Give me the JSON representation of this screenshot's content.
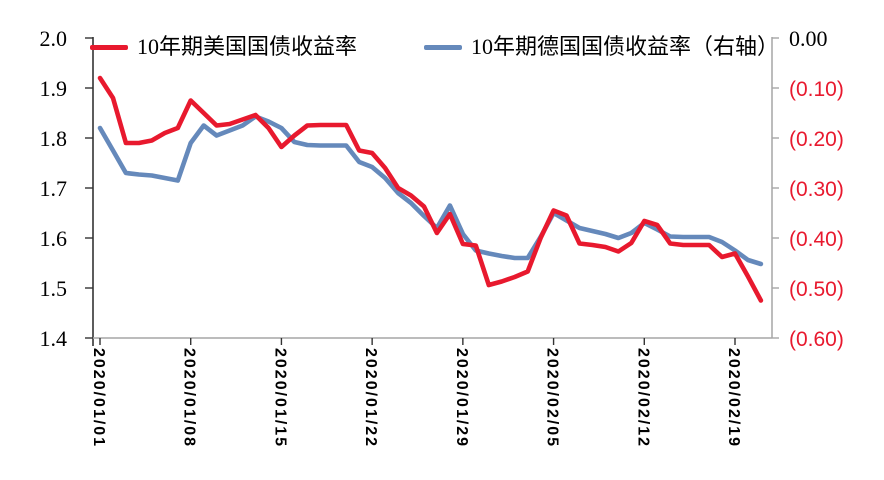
{
  "chart_data": {
    "type": "line",
    "title": "",
    "grid": false,
    "legend_position": "top",
    "x": [
      "2020/01/01",
      "2020/01/02",
      "2020/01/03",
      "2020/01/04",
      "2020/01/05",
      "2020/01/06",
      "2020/01/07",
      "2020/01/08",
      "2020/01/09",
      "2020/01/10",
      "2020/01/11",
      "2020/01/12",
      "2020/01/13",
      "2020/01/14",
      "2020/01/15",
      "2020/01/16",
      "2020/01/17",
      "2020/01/18",
      "2020/01/19",
      "2020/01/20",
      "2020/01/21",
      "2020/01/22",
      "2020/01/23",
      "2020/01/24",
      "2020/01/25",
      "2020/01/26",
      "2020/01/27",
      "2020/01/28",
      "2020/01/29",
      "2020/01/30",
      "2020/01/31",
      "2020/02/01",
      "2020/02/02",
      "2020/02/03",
      "2020/02/04",
      "2020/02/05",
      "2020/02/06",
      "2020/02/07",
      "2020/02/08",
      "2020/02/09",
      "2020/02/10",
      "2020/02/11",
      "2020/02/12",
      "2020/02/13",
      "2020/02/14",
      "2020/02/15",
      "2020/02/16",
      "2020/02/17",
      "2020/02/18",
      "2020/02/19",
      "2020/02/20",
      "2020/02/21"
    ],
    "x_tick_labels": [
      "2020/01/01",
      "2020/01/08",
      "2020/01/15",
      "2020/01/22",
      "2020/01/29",
      "2020/02/05",
      "2020/02/12",
      "2020/02/19"
    ],
    "series": [
      {
        "name": "10年期美国国债收益率",
        "axis": "left",
        "color": "#e8192e",
        "values": [
          1.92,
          1.88,
          1.79,
          1.79,
          1.795,
          1.81,
          1.82,
          1.875,
          1.85,
          1.825,
          1.828,
          1.837,
          1.846,
          1.82,
          1.782,
          1.805,
          1.825,
          1.826,
          1.826,
          1.826,
          1.775,
          1.77,
          1.74,
          1.7,
          1.685,
          1.663,
          1.61,
          1.648,
          1.588,
          1.585,
          1.506,
          1.513,
          1.522,
          1.533,
          1.6,
          1.655,
          1.645,
          1.589,
          1.586,
          1.582,
          1.573,
          1.59,
          1.634,
          1.626,
          1.589,
          1.586,
          1.586,
          1.586,
          1.562,
          1.569,
          1.523,
          1.475
        ]
      },
      {
        "name": "10年期德国国债收益率（右轴）",
        "axis": "right",
        "color": "#6589bb",
        "values": [
          -0.18,
          -0.225,
          -0.27,
          -0.273,
          -0.275,
          -0.28,
          -0.285,
          -0.21,
          -0.175,
          -0.195,
          -0.185,
          -0.175,
          -0.157,
          -0.167,
          -0.18,
          -0.208,
          -0.214,
          -0.215,
          -0.215,
          -0.215,
          -0.248,
          -0.258,
          -0.28,
          -0.31,
          -0.33,
          -0.356,
          -0.38,
          -0.335,
          -0.392,
          -0.425,
          -0.431,
          -0.436,
          -0.44,
          -0.44,
          -0.398,
          -0.35,
          -0.365,
          -0.38,
          -0.386,
          -0.392,
          -0.4,
          -0.39,
          -0.37,
          -0.383,
          -0.397,
          -0.398,
          -0.398,
          -0.398,
          -0.408,
          -0.425,
          -0.444,
          -0.452
        ]
      }
    ],
    "left_axis": {
      "labels": [
        "2.0",
        "1.9",
        "1.8",
        "1.7",
        "1.6",
        "1.5",
        "1.4"
      ],
      "min": 1.4,
      "max": 2.0
    },
    "right_axis": {
      "labels": [
        "0.00",
        "(0.10)",
        "(0.20)",
        "(0.30)",
        "(0.40)",
        "(0.50)",
        "(0.60)"
      ],
      "min": -0.6,
      "max": 0.0
    }
  },
  "colors": {
    "us_line": "#e8192e",
    "de_line": "#6589bb",
    "right_axis_labels": "#e8192e",
    "left_axis_line": "#262626",
    "right_axis_line": "#a6a6a6",
    "x_axis_line": "#a6a6a6",
    "tick_dark": "#333333",
    "background": "#ffffff"
  }
}
